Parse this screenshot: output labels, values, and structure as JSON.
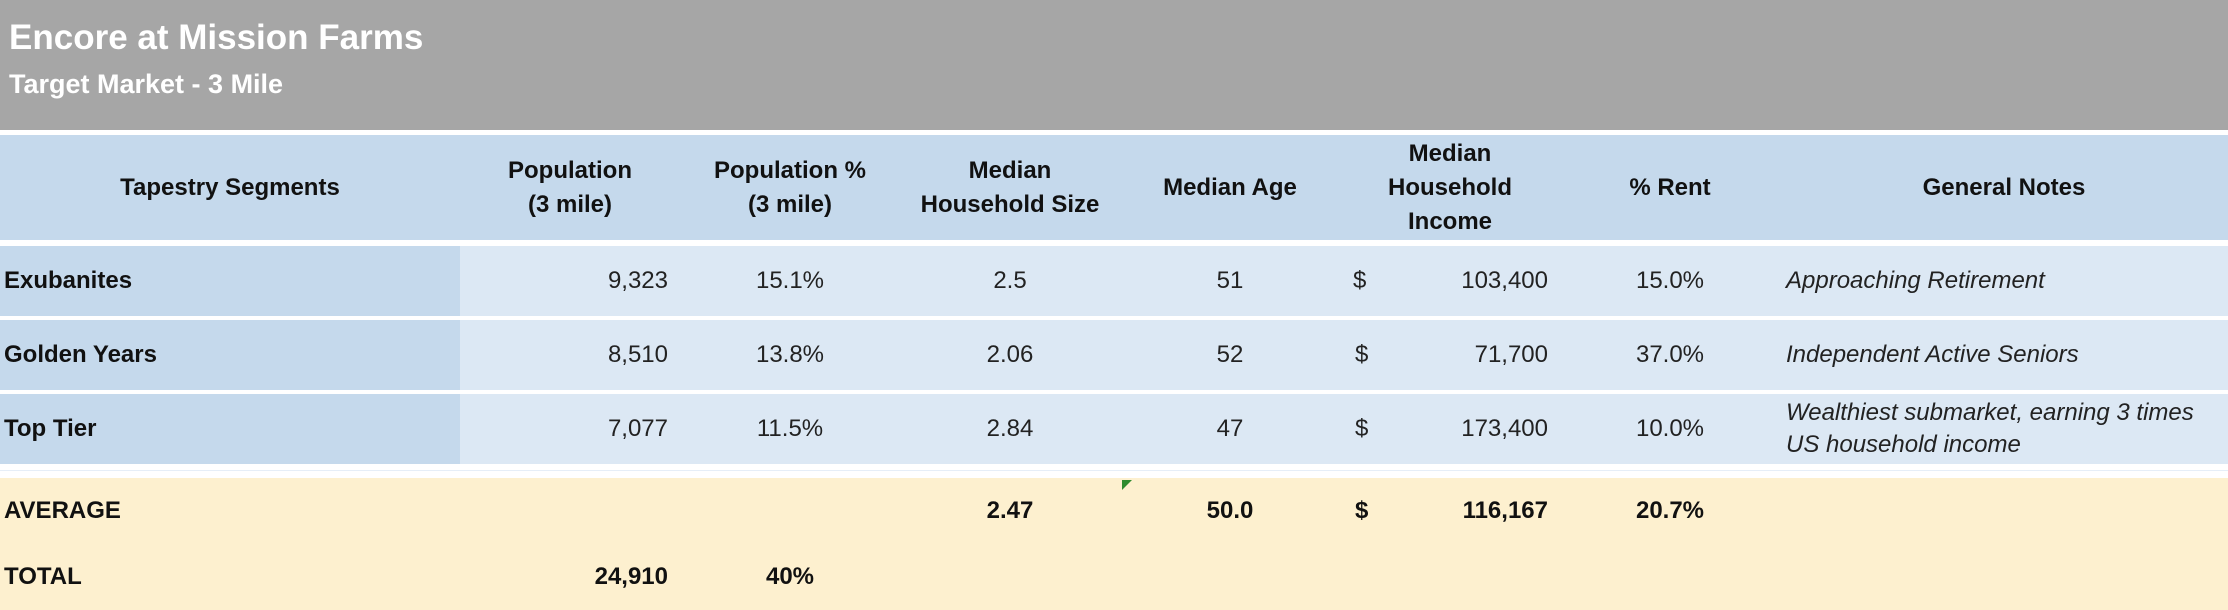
{
  "header": {
    "title": "Encore at Mission Farms",
    "subtitle": "Target Market - 3 Mile"
  },
  "table": {
    "columns": [
      "Tapestry Segments",
      "Population\n(3 mile)",
      "Population %\n(3 mile)",
      "Median\nHousehold Size",
      "Median Age",
      "Median\nHousehold\nIncome",
      "% Rent",
      "General Notes"
    ],
    "rows": [
      {
        "segment": "Exubanites",
        "population": "9,323",
        "population_pct": "15.1%",
        "household_size": "2.5",
        "median_age": "51",
        "currency": "$",
        "income": "103,400",
        "rent_pct": "15.0%",
        "notes": "Approaching Retirement"
      },
      {
        "segment": "Golden Years",
        "population": "8,510",
        "population_pct": "13.8%",
        "household_size": "2.06",
        "median_age": "52",
        "currency": "$",
        "income": "71,700",
        "rent_pct": "37.0%",
        "notes": "Independent Active Seniors"
      },
      {
        "segment": "Top Tier",
        "population": "7,077",
        "population_pct": "11.5%",
        "household_size": "2.84",
        "median_age": "47",
        "currency": "$",
        "income": "173,400",
        "rent_pct": "10.0%",
        "notes": "Wealthiest submarket, earning 3 times US household income"
      }
    ]
  },
  "average": {
    "label": "AVERAGE",
    "household_size": "2.47",
    "median_age": "50.0",
    "currency": "$",
    "income": "116,167",
    "rent_pct": "20.7%"
  },
  "total": {
    "label": "TOTAL",
    "population": "24,910",
    "population_pct": "40%"
  },
  "colors": {
    "banner": "#a6a6a6",
    "header_fill": "#c5d9ec",
    "row_fill": "#dce8f4",
    "summary_fill": "#fdf0cf"
  }
}
